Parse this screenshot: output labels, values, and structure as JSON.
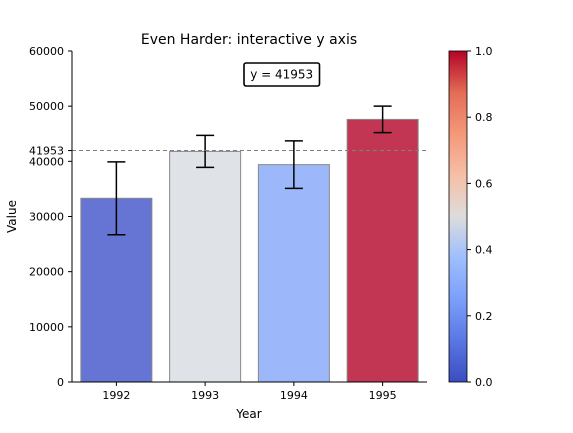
{
  "chart_data": {
    "type": "bar",
    "title": "Even Harder: interactive y axis",
    "xlabel": "Year",
    "ylabel": "Value",
    "categories": [
      "1992",
      "1993",
      "1994",
      "1995"
    ],
    "values": [
      33300,
      41800,
      39400,
      47600
    ],
    "errors": [
      6600,
      2900,
      4300,
      2400
    ],
    "ylim": [
      0,
      60000
    ],
    "yticks": [
      0,
      10000,
      20000,
      30000,
      40000,
      50000,
      60000
    ],
    "reference_line": {
      "value": 41953,
      "label": "41953",
      "annotation": "y = 41953"
    },
    "colorbar": {
      "colormap": "coolwarm",
      "range": [
        0,
        1
      ],
      "ticks": [
        "0.0",
        "0.2",
        "0.4",
        "0.6",
        "0.8",
        "1.0"
      ]
    },
    "bar_colors": [
      "#6674d4",
      "#dfe2e6",
      "#9db8fa",
      "#c33653"
    ],
    "grid": false
  }
}
